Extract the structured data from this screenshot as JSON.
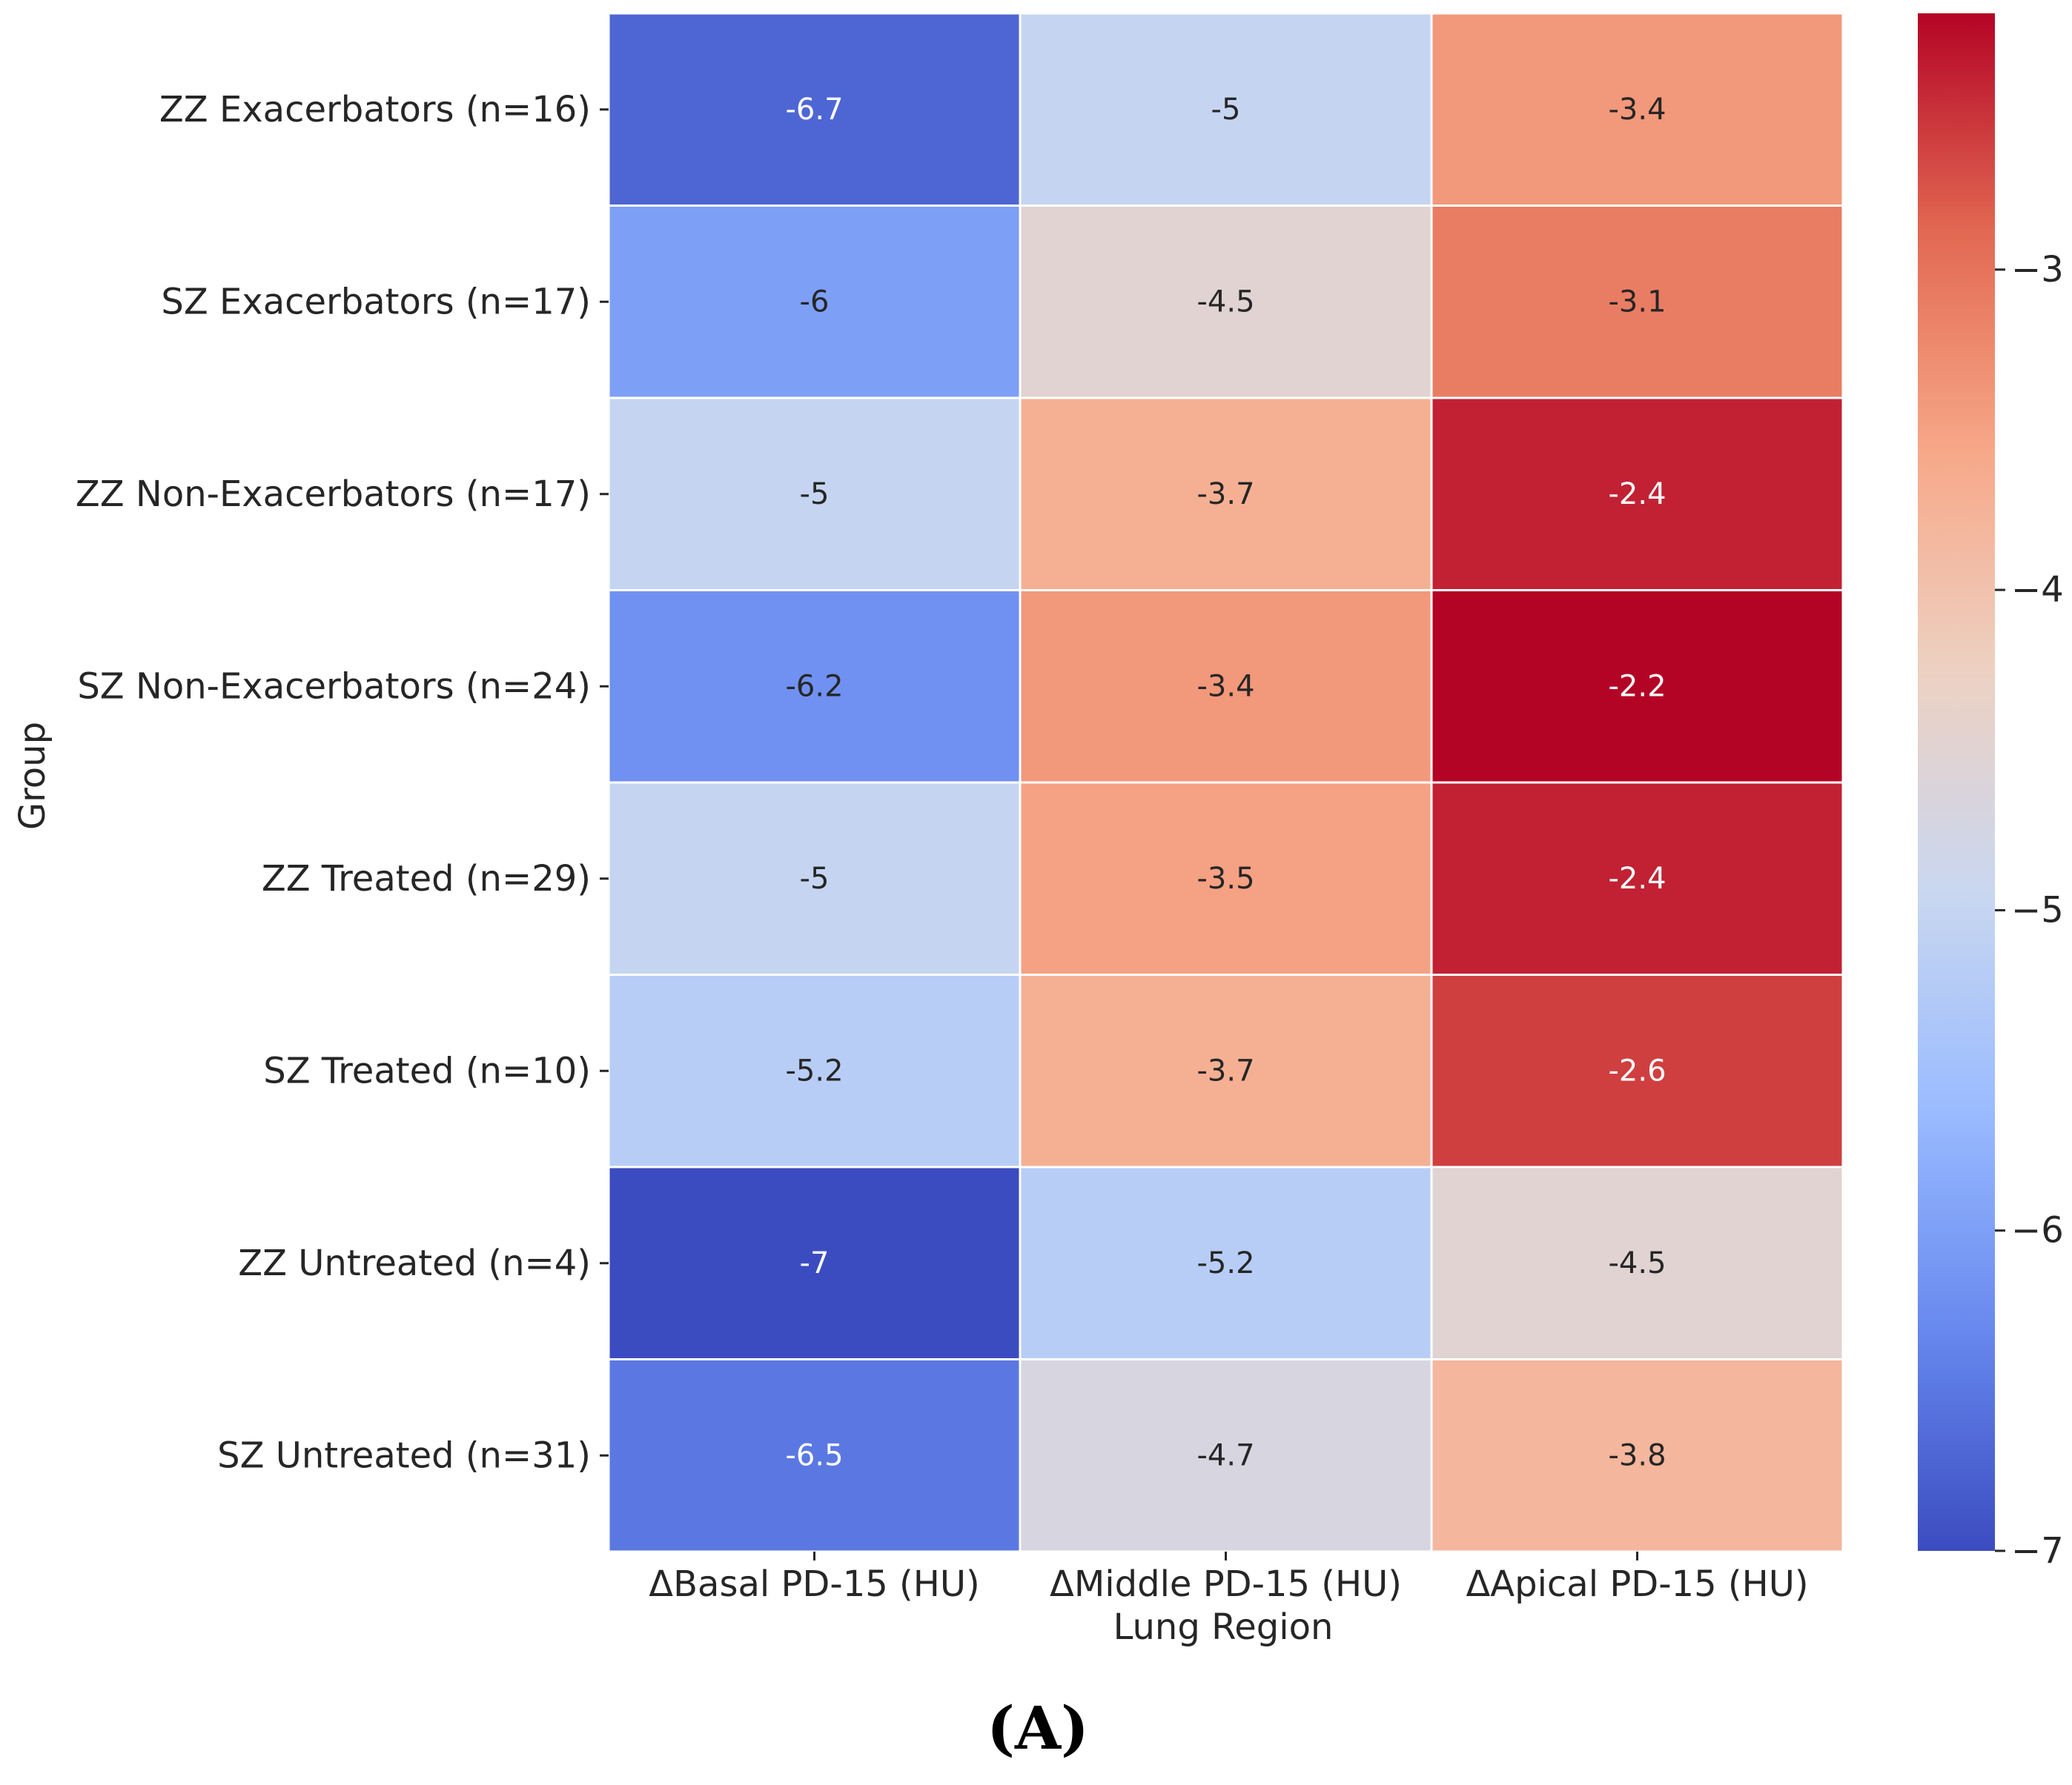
{
  "chart_data": {
    "type": "heatmap",
    "title": "",
    "xlabel": "Lung Region",
    "ylabel": "Group",
    "columns": [
      "ΔBasal PD-15 (HU)",
      "ΔMiddle PD-15 (HU)",
      "ΔApical PD-15 (HU)"
    ],
    "rows": [
      "ZZ Exacerbators (n=16)",
      "SZ Exacerbators (n=17)",
      "ZZ Non-Exacerbators (n=17)",
      "SZ Non-Exacerbators (n=24)",
      "ZZ Treated (n=29)",
      "SZ Treated (n=10)",
      "ZZ Untreated (n=4)",
      "SZ Untreated (n=31)"
    ],
    "values": [
      [
        -6.7,
        -5,
        -3.4
      ],
      [
        -6,
        -4.5,
        -3.1
      ],
      [
        -5,
        -3.7,
        -2.4
      ],
      [
        -6.2,
        -3.4,
        -2.2
      ],
      [
        -5,
        -3.5,
        -2.4
      ],
      [
        -5.2,
        -3.7,
        -2.6
      ],
      [
        -7,
        -5.2,
        -4.5
      ],
      [
        -6.5,
        -4.7,
        -3.8
      ]
    ],
    "colormap": "coolwarm",
    "colorbar": {
      "range": [
        -7,
        -2.2
      ],
      "ticks": [
        -3,
        -4,
        -5,
        -6,
        -7
      ],
      "tick_labels": [
        "−3",
        "−4",
        "−5",
        "−6",
        "−7"
      ]
    },
    "panel_label": "(A)"
  },
  "colors": {
    "coolwarm_stops": [
      "#3b4cc0",
      "#6788ee",
      "#9abbff",
      "#c9d7f0",
      "#edd1c2",
      "#f7a889",
      "#e26952",
      "#b40426"
    ],
    "text_dark": "#262626",
    "text_light": "#ffffff"
  }
}
